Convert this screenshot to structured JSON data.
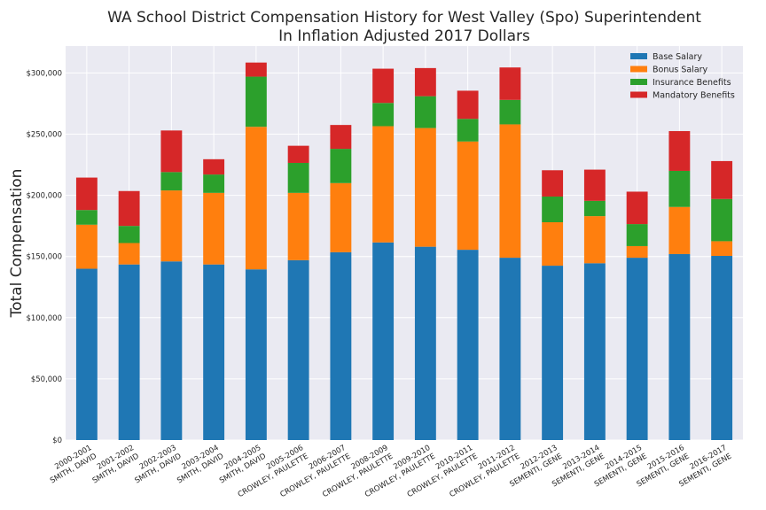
{
  "chart_data": {
    "type": "bar",
    "stacked": true,
    "title": [
      "WA School District Compensation History for West Valley (Spo) Superintendent",
      "In Inflation Adjusted 2017 Dollars"
    ],
    "xlabel": "",
    "ylabel": "Total Compensation",
    "ylim": [
      0,
      322000
    ],
    "yticks": [
      0,
      50000,
      100000,
      150000,
      200000,
      250000,
      300000
    ],
    "ytick_labels": [
      "$0",
      "$50,000",
      "$100,000",
      "$150,000",
      "$200,000",
      "$250,000",
      "$300,000"
    ],
    "grid": true,
    "legend_position": "top-right",
    "categories": [
      [
        "2000-2001",
        "SMITH, DAVID"
      ],
      [
        "2001-2002",
        "SMITH, DAVID"
      ],
      [
        "2002-2003",
        "SMITH, DAVID"
      ],
      [
        "2003-2004",
        "SMITH, DAVID"
      ],
      [
        "2004-2005",
        "SMITH, DAVID"
      ],
      [
        "2005-2006",
        "CROWLEY, PAULETTE"
      ],
      [
        "2006-2007",
        "CROWLEY, PAULETTE"
      ],
      [
        "2008-2009",
        "CROWLEY, PAULETTE"
      ],
      [
        "2009-2010",
        "CROWLEY, PAULETTE"
      ],
      [
        "2010-2011",
        "CROWLEY, PAULETTE"
      ],
      [
        "2011-2012",
        "CROWLEY, PAULETTE"
      ],
      [
        "2012-2013",
        "SEMENTI, GENE"
      ],
      [
        "2013-2014",
        "SEMENTI, GENE"
      ],
      [
        "2014-2015",
        "SEMENTI, GENE"
      ],
      [
        "2015-2016",
        "SEMENTI, GENE"
      ],
      [
        "2016-2017",
        "SEMENTI, GENE"
      ]
    ],
    "series": [
      {
        "name": "Base Salary",
        "color": "#1f77b4",
        "values": [
          140000,
          143500,
          146000,
          143500,
          139500,
          147000,
          153500,
          161500,
          158000,
          155500,
          149000,
          142500,
          144500,
          149000,
          152000,
          150500
        ]
      },
      {
        "name": "Bonus Salary",
        "color": "#ff7f0e",
        "values": [
          36000,
          17500,
          58000,
          58500,
          116500,
          55000,
          56500,
          95000,
          97000,
          88500,
          109000,
          35500,
          38500,
          9500,
          38500,
          12000
        ]
      },
      {
        "name": "Insurance Benefits",
        "color": "#2ca02c",
        "values": [
          12000,
          14000,
          15000,
          15000,
          41000,
          24500,
          28000,
          19000,
          26000,
          18500,
          20000,
          21000,
          12500,
          18000,
          29500,
          34500
        ]
      },
      {
        "name": "Mandatory Benefits",
        "color": "#d62728",
        "values": [
          26500,
          28500,
          34000,
          12500,
          11500,
          14000,
          19500,
          28000,
          23000,
          23000,
          26500,
          21500,
          25500,
          26500,
          32500,
          31000
        ]
      }
    ]
  }
}
